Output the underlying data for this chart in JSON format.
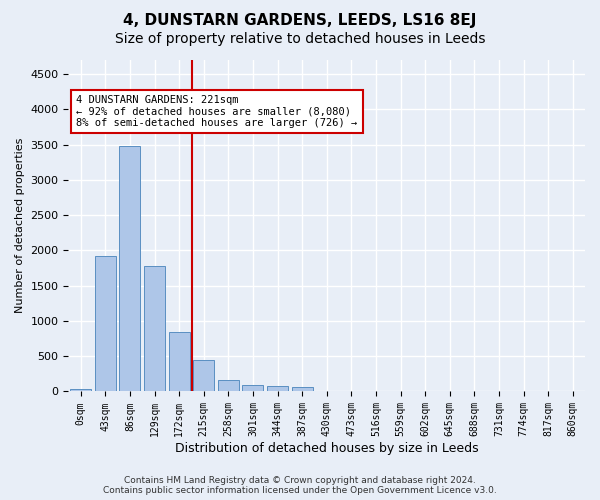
{
  "title": "4, DUNSTARN GARDENS, LEEDS, LS16 8EJ",
  "subtitle": "Size of property relative to detached houses in Leeds",
  "xlabel": "Distribution of detached houses by size in Leeds",
  "ylabel": "Number of detached properties",
  "bin_labels": [
    "0sqm",
    "43sqm",
    "86sqm",
    "129sqm",
    "172sqm",
    "215sqm",
    "258sqm",
    "301sqm",
    "344sqm",
    "387sqm",
    "430sqm",
    "473sqm",
    "516sqm",
    "559sqm",
    "602sqm",
    "645sqm",
    "688sqm",
    "731sqm",
    "774sqm",
    "817sqm",
    "860sqm"
  ],
  "bar_values": [
    30,
    1920,
    3480,
    1780,
    840,
    440,
    160,
    95,
    75,
    65,
    0,
    0,
    0,
    0,
    0,
    0,
    0,
    0,
    0,
    0,
    0
  ],
  "bar_color": "#aec6e8",
  "bar_edge_color": "#5a8fc2",
  "property_bin_index": 5,
  "vline_color": "#cc0000",
  "annotation_text": "4 DUNSTARN GARDENS: 221sqm\n← 92% of detached houses are smaller (8,080)\n8% of semi-detached houses are larger (726) →",
  "annotation_box_color": "#ffffff",
  "annotation_box_edge": "#cc0000",
  "footer_line1": "Contains HM Land Registry data © Crown copyright and database right 2024.",
  "footer_line2": "Contains public sector information licensed under the Open Government Licence v3.0.",
  "ylim": [
    0,
    4700
  ],
  "yticks": [
    0,
    500,
    1000,
    1500,
    2000,
    2500,
    3000,
    3500,
    4000,
    4500
  ],
  "background_color": "#e8eef7",
  "plot_bg_color": "#e8eef7",
  "grid_color": "#ffffff",
  "title_fontsize": 11,
  "subtitle_fontsize": 10
}
